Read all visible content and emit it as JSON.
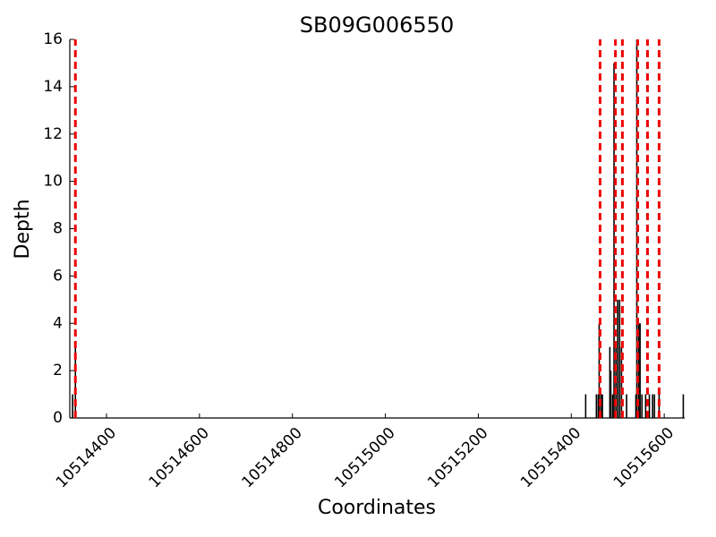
{
  "chart_data": {
    "type": "bar",
    "title": "SB09G006550",
    "x_label": "Coordinates",
    "y_label": "Depth",
    "x": [
      10514327,
      10514333,
      10515431,
      10515454,
      10515458,
      10515460,
      10515464,
      10515467,
      10515483,
      10515485,
      10515489,
      10515492,
      10515496,
      10515500,
      10515504,
      10515508,
      10515519,
      10515539,
      10515541,
      10515545,
      10515548,
      10515552,
      10515560,
      10515568,
      10515575,
      10515579,
      10515589,
      10515641
    ],
    "values": [
      1,
      3,
      1,
      1,
      1,
      4,
      1,
      1,
      3,
      2,
      1,
      15,
      3,
      5,
      5,
      3,
      1,
      1,
      16,
      4,
      4,
      1,
      1,
      1,
      1,
      1,
      1,
      1
    ],
    "color": "#000000",
    "vlines": [
      10514333,
      10515462,
      10515495,
      10515510,
      10515543,
      10515564,
      10515589
    ],
    "vline_color": "#ee0000",
    "xlim": [
      10514321,
      10515644
    ],
    "xticks": [
      10514400,
      10514600,
      10514800,
      10515000,
      10515200,
      10515400,
      10515600
    ],
    "ylim": [
      0,
      16
    ],
    "yticks": [
      0,
      2,
      4,
      6,
      8,
      10,
      12,
      14,
      16
    ]
  }
}
